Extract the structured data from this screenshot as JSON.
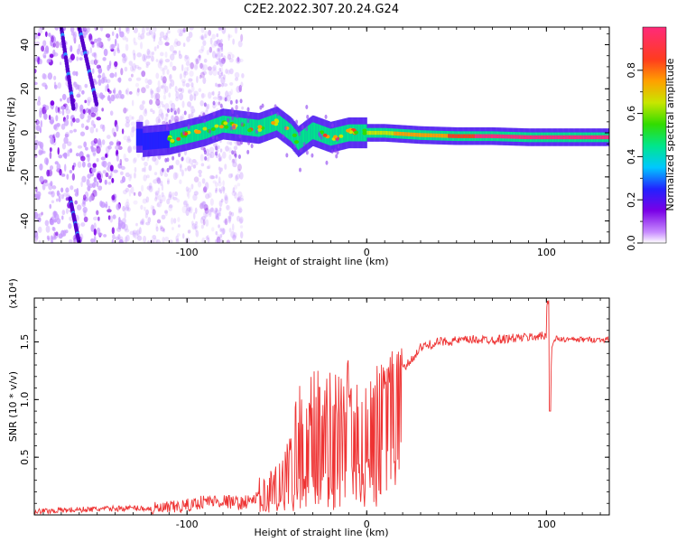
{
  "title": "C2E2.2022.307.20.24.G24",
  "chart_data": [
    {
      "type": "heatmap",
      "xlabel": "Height of straight line (km)",
      "ylabel": "Frequency (Hz)",
      "xlim": [
        -185,
        135
      ],
      "ylim": [
        -50,
        48
      ],
      "xticks": [
        -100,
        0,
        100
      ],
      "xtick_labels": [
        "-100",
        "0",
        "100"
      ],
      "yticks": [
        -40,
        -20,
        0,
        20,
        40
      ],
      "ytick_labels": [
        "-40",
        "-20",
        "0",
        "20",
        "40"
      ],
      "colorbar": {
        "label": "Normalized spectral amplitude",
        "range": [
          0.0,
          1.0
        ],
        "ticks": [
          0.0,
          0.2,
          0.4,
          0.6,
          0.8
        ],
        "tick_labels": [
          "0.0",
          "0.2",
          "0.4",
          "0.6",
          "0.8"
        ],
        "colors": [
          "#ffffff",
          "#c88cff",
          "#7a00e6",
          "#2222ff",
          "#00c8ff",
          "#00e68c",
          "#32dc00",
          "#c8e600",
          "#ffa000",
          "#ff3c1e",
          "#ff2a7a"
        ]
      },
      "ridge": {
        "x": [
          -125,
          -110,
          -100,
          -90,
          -80,
          -70,
          -60,
          -50,
          -42,
          -38,
          -30,
          -20,
          -10,
          0,
          10,
          30,
          50,
          70,
          90,
          100,
          115,
          135
        ],
        "y": [
          -4,
          -3,
          -1,
          1,
          4,
          3,
          2,
          5,
          0,
          -4,
          1,
          -2,
          0,
          0,
          0,
          -1,
          -1.5,
          -1.5,
          -2,
          -2,
          -2,
          -2
        ]
      }
    },
    {
      "type": "line",
      "xlabel": "Height of straight line (km)",
      "ylabel": "SNR (10 * v/v)",
      "y_multiplier": "(x10⁴)",
      "xlim": [
        -185,
        135
      ],
      "ylim": [
        0,
        1.88
      ],
      "xticks": [
        -100,
        0,
        100
      ],
      "xtick_labels": [
        "-100",
        "0",
        "100"
      ],
      "yticks": [
        0.5,
        1.0,
        1.5
      ],
      "ytick_labels": [
        "0.5",
        "1.0",
        "1.5"
      ],
      "color": "#ee3333",
      "series": [
        {
          "x": [
            -185,
            -170,
            -150,
            -130,
            -115,
            -100,
            -90,
            -80,
            -70,
            -60,
            -50,
            -45,
            -40,
            -35,
            -30,
            -25,
            -20,
            -15,
            -10,
            -5,
            0,
            5,
            10,
            15,
            20,
            25,
            30,
            40,
            50,
            60,
            70,
            80,
            90,
            95,
            100,
            101,
            102,
            103,
            105,
            110,
            120,
            135
          ],
          "y": [
            0.03,
            0.04,
            0.05,
            0.06,
            0.05,
            0.08,
            0.12,
            0.12,
            0.1,
            0.15,
            0.28,
            0.4,
            0.55,
            0.68,
            0.7,
            0.75,
            0.72,
            0.72,
            0.8,
            0.85,
            0.9,
            1.0,
            1.05,
            1.15,
            1.25,
            1.35,
            1.45,
            1.5,
            1.51,
            1.52,
            1.52,
            1.53,
            1.54,
            1.55,
            1.55,
            1.8,
            0.9,
            1.45,
            1.53,
            1.52,
            1.52,
            1.52
          ]
        }
      ]
    }
  ]
}
